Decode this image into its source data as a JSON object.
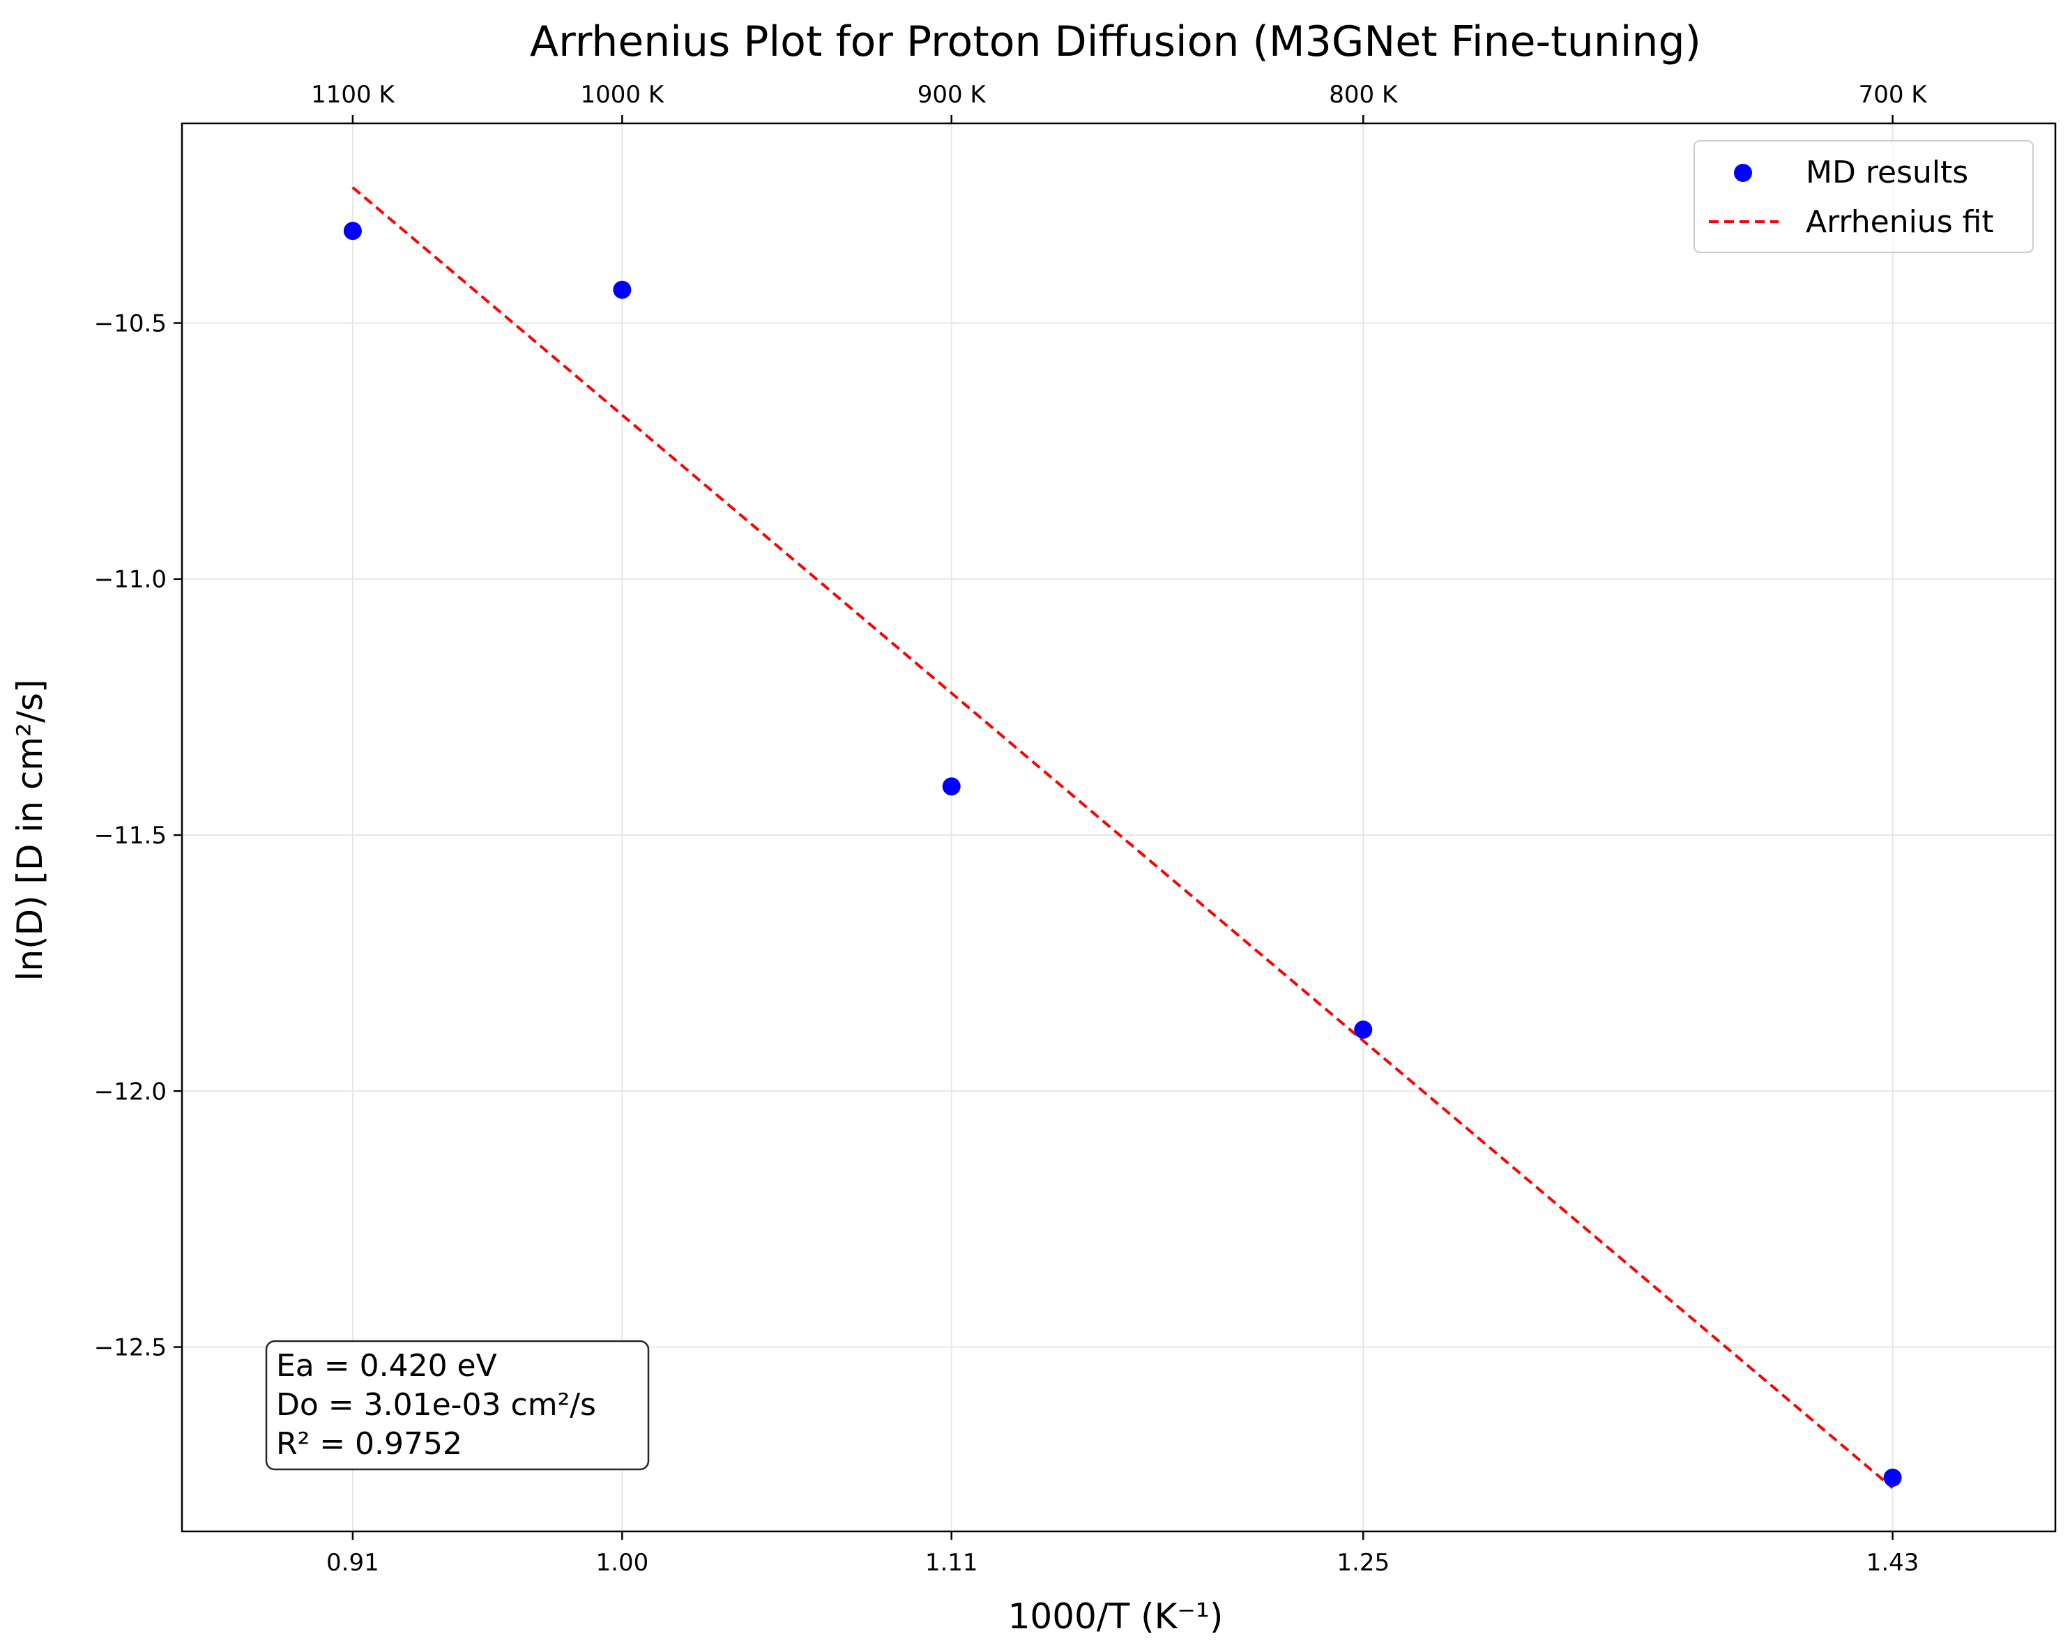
{
  "chart_data": {
    "type": "scatter",
    "title": "Arrhenius Plot for Proton Diffusion (M3GNet Fine-tuning)",
    "xlabel": "1000/T (K⁻¹)",
    "ylabel": "ln(D) [D in cm²/s]",
    "xlim": [
      0.8515,
      1.4835
    ],
    "ylim": [
      -12.86,
      -10.11
    ],
    "grid": true,
    "legend_position": "top-right",
    "x_ticks": [
      {
        "value": 0.9091,
        "label": "0.91"
      },
      {
        "value": 1.0,
        "label": "1.00"
      },
      {
        "value": 1.1111,
        "label": "1.11"
      },
      {
        "value": 1.25,
        "label": "1.25"
      },
      {
        "value": 1.4286,
        "label": "1.43"
      }
    ],
    "top_x_ticks": [
      {
        "value": 0.9091,
        "label": "1100 K"
      },
      {
        "value": 1.0,
        "label": "1000 K"
      },
      {
        "value": 1.1111,
        "label": "900 K"
      },
      {
        "value": 1.25,
        "label": "800 K"
      },
      {
        "value": 1.4286,
        "label": "700 K"
      }
    ],
    "y_ticks": [
      {
        "value": -10.5,
        "label": "−10.5"
      },
      {
        "value": -11.0,
        "label": "−11.0"
      },
      {
        "value": -11.5,
        "label": "−11.5"
      },
      {
        "value": -12.0,
        "label": "−12.0"
      },
      {
        "value": -12.5,
        "label": "−12.5"
      }
    ],
    "series": [
      {
        "name": "MD results",
        "kind": "scatter",
        "color": "#0000ff",
        "x": [
          0.9091,
          1.0,
          1.1111,
          1.25,
          1.4286
        ],
        "y": [
          -10.32,
          -10.435,
          -11.405,
          -11.88,
          -12.755
        ]
      },
      {
        "name": "Arrhenius fit",
        "kind": "line",
        "style": "dashed",
        "color": "#ff0000",
        "x": [
          0.9091,
          1.4286
        ],
        "y": [
          -10.235,
          -12.775
        ]
      }
    ],
    "annotation": {
      "lines": [
        "Ea = 0.420 eV",
        "Do = 3.01e-03 cm²/s",
        "R² = 0.9752"
      ],
      "position": "bottom-left"
    }
  }
}
